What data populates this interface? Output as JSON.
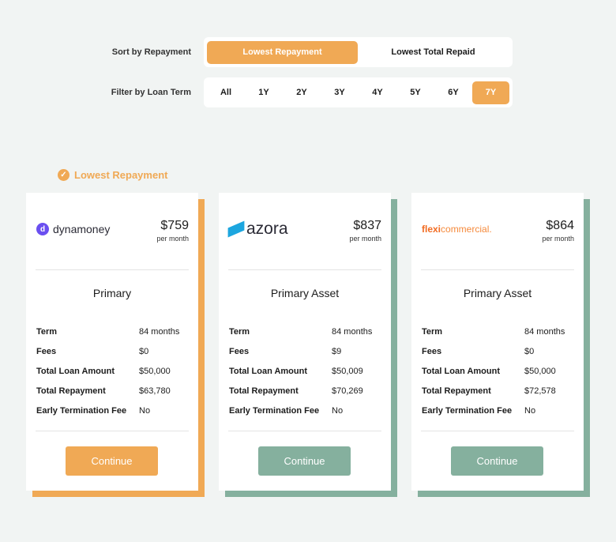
{
  "sort": {
    "label": "Sort by Repayment",
    "options": [
      "Lowest Repayment",
      "Lowest Total Repaid"
    ],
    "selected": "Lowest Repayment"
  },
  "filter": {
    "label": "Filter by Loan Term",
    "options": [
      "All",
      "1Y",
      "2Y",
      "3Y",
      "4Y",
      "5Y",
      "6Y",
      "7Y"
    ],
    "selected": "7Y"
  },
  "badge": "Lowest Repayment",
  "colors": {
    "accent": "#f0a955",
    "green": "#85b09e"
  },
  "field_labels": [
    "Term",
    "Fees",
    "Total Loan Amount",
    "Total Repayment",
    "Early Termination Fee"
  ],
  "cards": [
    {
      "lender": "dynamoney",
      "amount": "$759",
      "per": "per month",
      "product": "Primary",
      "values": [
        "84 months",
        "$0",
        "$50,000",
        "$63,780",
        "No"
      ],
      "button": "Continue"
    },
    {
      "lender": "azora",
      "amount": "$837",
      "per": "per month",
      "product": "Primary Asset",
      "values": [
        "84 months",
        "$9",
        "$50,009",
        "$70,269",
        "No"
      ],
      "button": "Continue"
    },
    {
      "lender_a": "flexi",
      "lender_b": "commercial.",
      "amount": "$864",
      "per": "per month",
      "product": "Primary Asset",
      "values": [
        "84 months",
        "$0",
        "$50,000",
        "$72,578",
        "No"
      ],
      "button": "Continue"
    }
  ]
}
